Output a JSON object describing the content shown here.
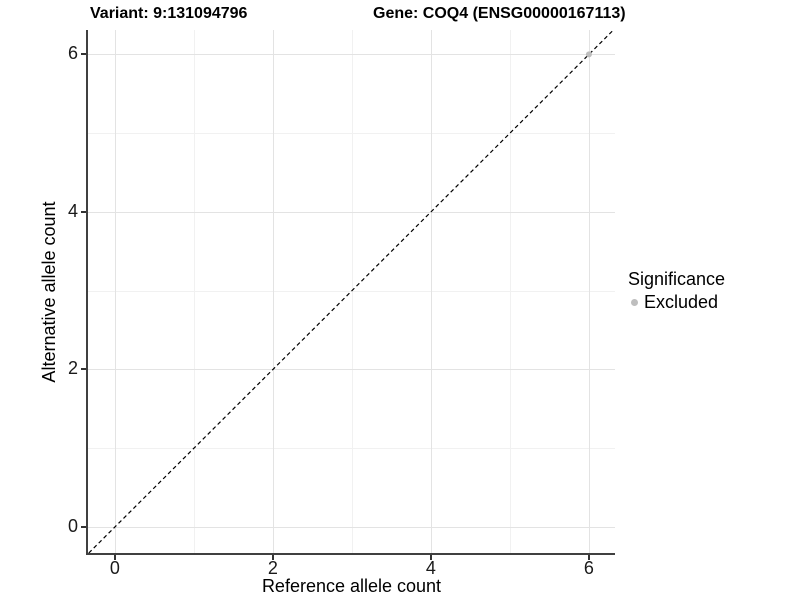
{
  "header": {
    "variant_title": "Variant: 9:131094796",
    "gene_title": "Gene: COQ4 (ENSG00000167113)"
  },
  "colors": {
    "grid_major": "#e3e3e3",
    "grid_minor": "#f1f1f1",
    "axis_line": "#404040",
    "tick": "#333333",
    "identity_line": "#000000",
    "excluded_point": "#bebebe",
    "text": "#000000",
    "background": "#ffffff"
  },
  "chart_data": {
    "type": "scatter",
    "title_left": "Variant: 9:131094796",
    "title_right": "Gene: COQ4 (ENSG00000167113)",
    "xlabel": "Reference allele count",
    "ylabel": "Alternative allele count",
    "xlim": [
      -0.34,
      6.33
    ],
    "ylim": [
      -0.33,
      6.31
    ],
    "x_major_ticks": [
      0,
      2,
      4,
      6
    ],
    "x_minor_ticks": [
      1,
      3,
      5
    ],
    "y_major_ticks": [
      0,
      2,
      4,
      6
    ],
    "y_minor_ticks": [
      1,
      3,
      5
    ],
    "grid": true,
    "identity_line": {
      "equation": "y = x",
      "style": "dashed",
      "color": "#000000"
    },
    "series": [
      {
        "name": "Excluded",
        "color": "#bebebe",
        "points": [
          {
            "x": 6,
            "y": 6
          }
        ]
      }
    ],
    "legend": {
      "title": "Significance",
      "position": "right",
      "items": [
        {
          "label": "Excluded",
          "color": "#bebebe"
        }
      ]
    }
  }
}
